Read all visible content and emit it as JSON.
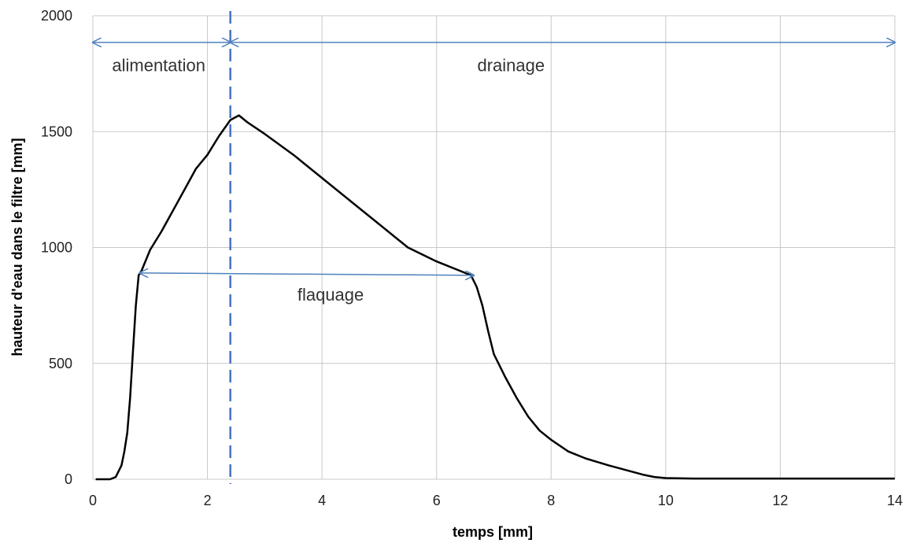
{
  "chart_data": {
    "type": "line",
    "xlabel": "temps [mm]",
    "ylabel": "hauteur d'eau dans le filtre [mm]",
    "xlim": [
      0,
      14
    ],
    "ylim": [
      0,
      2000
    ],
    "xticks": [
      0,
      2,
      4,
      6,
      8,
      10,
      12,
      14
    ],
    "yticks": [
      0,
      500,
      1000,
      1500,
      2000
    ],
    "grid": true,
    "series": [
      {
        "x": [
          0.05,
          0.3,
          0.4,
          0.5,
          0.55,
          0.6,
          0.65,
          0.7,
          0.75,
          0.8,
          0.85,
          1.0,
          1.2,
          1.4,
          1.6,
          1.8,
          2.0,
          2.2,
          2.4,
          2.55,
          2.7,
          3.0,
          3.5,
          4.0,
          4.5,
          5.0,
          5.5,
          6.0,
          6.4,
          6.6,
          6.7,
          6.8,
          6.9,
          7.0,
          7.2,
          7.4,
          7.6,
          7.8,
          8.0,
          8.3,
          8.6,
          9.0,
          9.3,
          9.6,
          9.8,
          10.0,
          10.5,
          11.0,
          12.0,
          13.0,
          14.0
        ],
        "y": [
          0,
          0,
          10,
          60,
          120,
          200,
          350,
          550,
          750,
          880,
          900,
          990,
          1070,
          1160,
          1250,
          1340,
          1400,
          1480,
          1550,
          1570,
          1540,
          1490,
          1400,
          1300,
          1200,
          1100,
          1000,
          940,
          900,
          880,
          830,
          750,
          640,
          540,
          440,
          350,
          270,
          210,
          170,
          120,
          90,
          60,
          40,
          20,
          10,
          5,
          3,
          3,
          3,
          3,
          3
        ],
        "color": "#000000"
      }
    ],
    "vline": {
      "x": 2.4,
      "color": "#4472c4",
      "style": "dashed"
    },
    "annotations": [
      {
        "text": "alimentation",
        "x": 1.15,
        "y": 1760
      },
      {
        "text": "drainage",
        "x": 7.3,
        "y": 1760
      },
      {
        "text": "flaquage",
        "x": 4.15,
        "y": 770
      }
    ],
    "arrows": [
      {
        "from": [
          0.0,
          1885
        ],
        "to": [
          2.4,
          1885
        ],
        "double": true,
        "color": "#4f81bd"
      },
      {
        "from": [
          2.4,
          1885
        ],
        "to": [
          14.0,
          1885
        ],
        "double": true,
        "color": "#4f81bd"
      },
      {
        "from": [
          0.82,
          890
        ],
        "to": [
          6.65,
          880
        ],
        "double": true,
        "color": "#4f81bd"
      }
    ]
  }
}
